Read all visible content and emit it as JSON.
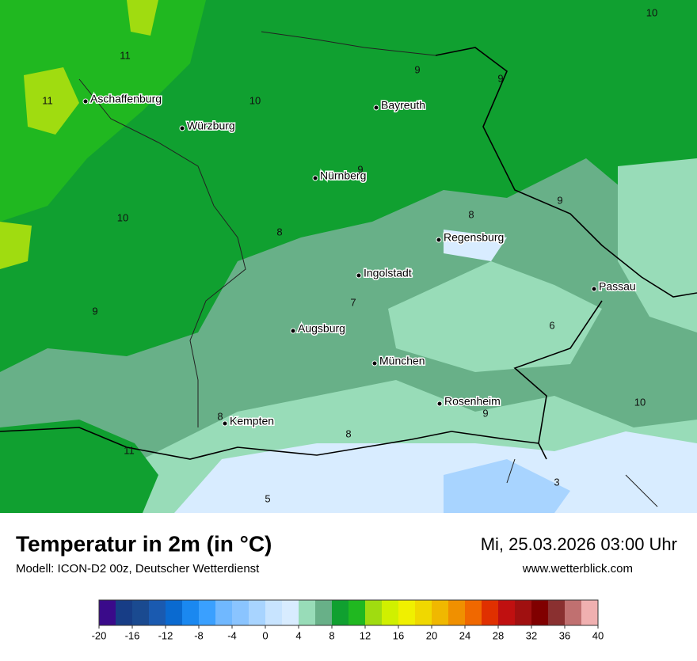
{
  "map": {
    "cities": [
      "Aschaffenburg",
      "Würzburg",
      "Bayreuth",
      "Nürnberg",
      "Regensburg",
      "Ingolstadt",
      "Passau",
      "Augsburg",
      "München",
      "Rosenheim",
      "Kempten"
    ],
    "temperature_labels": [
      11,
      11,
      10,
      9,
      9,
      10,
      9,
      10,
      8,
      8,
      9,
      9,
      7,
      6,
      10,
      9,
      8,
      8,
      11,
      3,
      5
    ]
  },
  "header": {
    "title": "Temperatur in 2m (in °C)",
    "subtitle": "Modell: ICON-D2 00z, Deutscher Wetterdienst",
    "date": "Mi, 25.03.2026 03:00 Uhr",
    "site": "www.wetterblick.com"
  },
  "legend": {
    "ticks": [
      -20,
      -16,
      -12,
      -8,
      -4,
      0,
      4,
      8,
      12,
      16,
      20,
      24,
      28,
      32,
      36,
      40
    ],
    "colors": [
      "#3a0a8a",
      "#173d86",
      "#1a4a90",
      "#1a5ab0",
      "#0a6ad0",
      "#1a88f0",
      "#3aa0ff",
      "#70b8ff",
      "#8ac4ff",
      "#a8d4ff",
      "#c8e4ff",
      "#d8ecff",
      "#98dcb8",
      "#68b088",
      "#10a030",
      "#20b820",
      "#a0dc10",
      "#d0f000",
      "#f0f000",
      "#f0d800",
      "#f0b800",
      "#f09000",
      "#f06800",
      "#e03000",
      "#c01010",
      "#a01010",
      "#800000",
      "#8a3030",
      "#c07070",
      "#f0b0b0"
    ]
  }
}
